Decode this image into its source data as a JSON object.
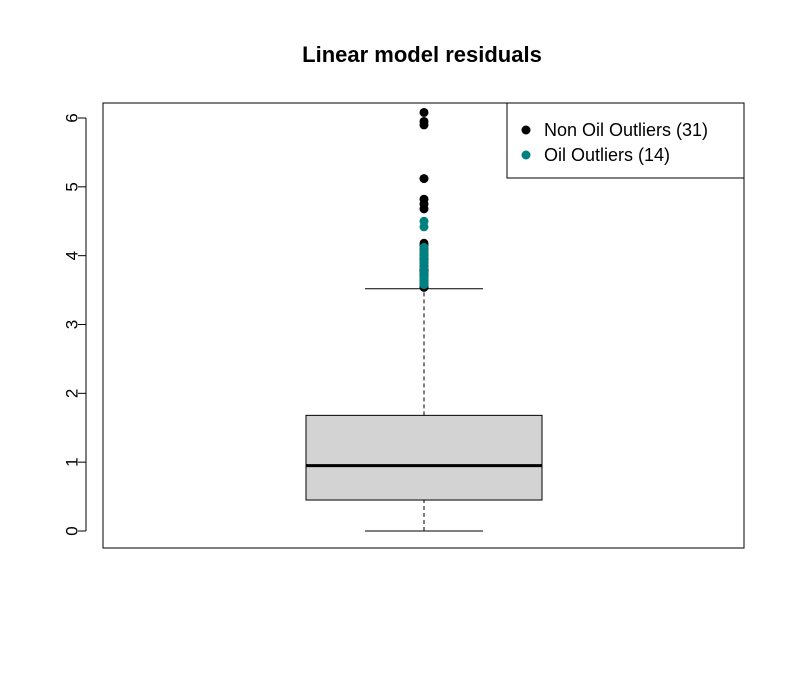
{
  "chart_data": {
    "type": "boxplot",
    "title": "Linear model residuals",
    "xlabel": "",
    "ylabel": "",
    "ylim": [
      -0.25,
      6.2
    ],
    "yticks": [
      0,
      1,
      2,
      3,
      4,
      5,
      6
    ],
    "grid": false,
    "box": {
      "whisker_low": 0.0,
      "q1": 0.45,
      "median": 0.95,
      "q3": 1.68,
      "whisker_high": 3.52,
      "fill": "#d3d3d3"
    },
    "series": [
      {
        "name": "Non Oil Outliers (31)",
        "color": "#000000",
        "values": [
          6.08,
          5.95,
          5.9,
          5.12,
          4.82,
          4.75,
          4.68,
          4.18,
          4.15,
          4.1,
          4.05,
          4.0,
          3.95,
          3.9,
          3.85,
          3.8,
          3.78,
          3.76,
          3.74,
          3.72,
          3.7,
          3.68,
          3.66,
          3.65,
          3.64,
          3.62,
          3.6,
          3.58,
          3.56,
          3.55,
          3.54
        ]
      },
      {
        "name": "Oil Outliers (14)",
        "color": "#008080",
        "values": [
          4.5,
          4.42,
          4.12,
          4.06,
          4.02,
          3.98,
          3.92,
          3.88,
          3.82,
          3.75,
          3.7,
          3.66,
          3.62,
          3.58
        ]
      }
    ],
    "legend_position": "top-right"
  }
}
